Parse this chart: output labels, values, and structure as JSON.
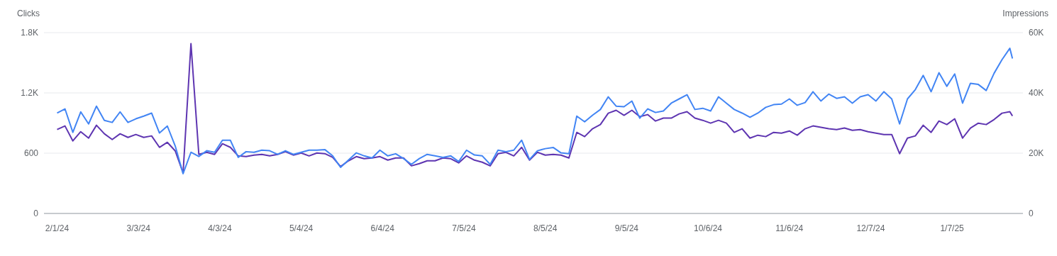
{
  "chart_data": {
    "type": "line",
    "ylabel": "Clicks",
    "y2label": "Impressions",
    "grid": "y",
    "legend": false,
    "marker": "none",
    "line_style": "solid",
    "x": [
      "2024-02-01",
      "2024-02-04",
      "2024-02-07",
      "2024-02-10",
      "2024-02-13",
      "2024-02-16",
      "2024-02-19",
      "2024-02-22",
      "2024-02-25",
      "2024-02-28",
      "2024-03-02",
      "2024-03-05",
      "2024-03-08",
      "2024-03-11",
      "2024-03-14",
      "2024-03-17",
      "2024-03-20",
      "2024-03-23",
      "2024-03-26",
      "2024-03-29",
      "2024-04-01",
      "2024-04-04",
      "2024-04-07",
      "2024-04-10",
      "2024-04-13",
      "2024-04-16",
      "2024-04-19",
      "2024-04-22",
      "2024-04-25",
      "2024-04-28",
      "2024-05-01",
      "2024-05-04",
      "2024-05-07",
      "2024-05-10",
      "2024-05-13",
      "2024-05-16",
      "2024-05-19",
      "2024-05-22",
      "2024-05-25",
      "2024-05-28",
      "2024-05-31",
      "2024-06-03",
      "2024-06-06",
      "2024-06-09",
      "2024-06-12",
      "2024-06-15",
      "2024-06-18",
      "2024-06-21",
      "2024-06-24",
      "2024-06-27",
      "2024-06-30",
      "2024-07-03",
      "2024-07-06",
      "2024-07-09",
      "2024-07-12",
      "2024-07-15",
      "2024-07-18",
      "2024-07-21",
      "2024-07-24",
      "2024-07-27",
      "2024-07-30",
      "2024-08-02",
      "2024-08-05",
      "2024-08-08",
      "2024-08-11",
      "2024-08-14",
      "2024-08-17",
      "2024-08-20",
      "2024-08-23",
      "2024-08-26",
      "2024-08-29",
      "2024-09-01",
      "2024-09-04",
      "2024-09-07",
      "2024-09-10",
      "2024-09-13",
      "2024-09-16",
      "2024-09-19",
      "2024-09-22",
      "2024-09-25",
      "2024-09-28",
      "2024-10-01",
      "2024-10-04",
      "2024-10-07",
      "2024-10-10",
      "2024-10-13",
      "2024-10-16",
      "2024-10-19",
      "2024-10-22",
      "2024-10-25",
      "2024-10-28",
      "2024-10-31",
      "2024-11-03",
      "2024-11-06",
      "2024-11-09",
      "2024-11-12",
      "2024-11-15",
      "2024-11-18",
      "2024-11-21",
      "2024-11-24",
      "2024-11-27",
      "2024-11-30",
      "2024-12-03",
      "2024-12-06",
      "2024-12-09",
      "2024-12-12",
      "2024-12-15",
      "2024-12-18",
      "2024-12-21",
      "2024-12-24",
      "2024-12-27",
      "2024-12-30",
      "2025-01-02",
      "2025-01-05",
      "2025-01-08",
      "2025-01-11",
      "2025-01-14",
      "2025-01-17",
      "2025-01-20",
      "2025-01-23",
      "2025-01-26",
      "2025-01-29",
      "2025-01-30"
    ],
    "xlim": [
      "2024-01-27",
      "2025-02-03"
    ],
    "xticks": [
      {
        "value": "2024-02-01",
        "label": "2/1/24"
      },
      {
        "value": "2024-03-03",
        "label": "3/3/24"
      },
      {
        "value": "2024-04-03",
        "label": "4/3/24"
      },
      {
        "value": "2024-05-04",
        "label": "5/4/24"
      },
      {
        "value": "2024-06-04",
        "label": "6/4/24"
      },
      {
        "value": "2024-07-05",
        "label": "7/5/24"
      },
      {
        "value": "2024-08-05",
        "label": "8/5/24"
      },
      {
        "value": "2024-09-05",
        "label": "9/5/24"
      },
      {
        "value": "2024-10-06",
        "label": "10/6/24"
      },
      {
        "value": "2024-11-06",
        "label": "11/6/24"
      },
      {
        "value": "2024-12-07",
        "label": "12/7/24"
      },
      {
        "value": "2025-01-07",
        "label": "1/7/25"
      }
    ],
    "ylim": [
      0,
      1800
    ],
    "yticks": [
      0,
      600,
      {
        "value": 1200,
        "label": "1.2K"
      },
      {
        "value": 1800,
        "label": "1.8K"
      }
    ],
    "y2lim": [
      0,
      60000
    ],
    "y2ticks": [
      0,
      {
        "value": 20000,
        "label": "20K"
      },
      {
        "value": 40000,
        "label": "40K"
      },
      {
        "value": 60000,
        "label": "60K"
      }
    ],
    "series": [
      {
        "color": "#5e35b1",
        "values": [
          835,
          871,
          722,
          814,
          750,
          878,
          793,
          736,
          793,
          757,
          786,
          757,
          772,
          658,
          708,
          623,
          404,
          1690,
          588,
          609,
          588,
          694,
          658,
          573,
          566,
          581,
          588,
          573,
          588,
          616,
          581,
          602,
          573,
          602,
          595,
          559,
          467,
          524,
          566,
          545,
          552,
          566,
          531,
          552,
          552,
          474,
          496,
          524,
          524,
          552,
          545,
          503,
          573,
          531,
          510,
          474,
          595,
          609,
          573,
          658,
          531,
          609,
          581,
          588,
          581,
          552,
          807,
          765,
          843,
          885,
          998,
          1027,
          977,
          1027,
          963,
          984,
          920,
          949,
          949,
          991,
          1013,
          949,
          927,
          899,
          927,
          899,
          807,
          843,
          750,
          779,
          765,
          807,
          800,
          821,
          779,
          843,
          871,
          857,
          843,
          835,
          850,
          828,
          835,
          814,
          800,
          786,
          786,
          595,
          750,
          772,
          878,
          807,
          920,
          885,
          942,
          750,
          850,
          899,
          885,
          935,
          998,
          1013,
          970
        ]
      },
      {
        "color": "#4285f4",
        "axis": "y2",
        "values": [
          33300,
          34700,
          26900,
          33700,
          29700,
          35600,
          30900,
          30200,
          33700,
          30200,
          31400,
          32300,
          33300,
          26700,
          29000,
          22400,
          13200,
          20300,
          18900,
          20800,
          20300,
          24300,
          24300,
          18600,
          20500,
          20300,
          21000,
          20800,
          19600,
          20800,
          19600,
          20300,
          21000,
          21000,
          21200,
          19100,
          15300,
          17700,
          20100,
          19100,
          18400,
          21000,
          19100,
          19800,
          18200,
          16300,
          18200,
          19600,
          19100,
          18600,
          19100,
          17200,
          21000,
          19400,
          19100,
          16300,
          21000,
          20500,
          21000,
          24300,
          17900,
          20800,
          21500,
          21900,
          20100,
          19800,
          32300,
          30400,
          32600,
          34500,
          38700,
          35600,
          35400,
          37300,
          31600,
          34700,
          33500,
          34000,
          36600,
          38000,
          39400,
          34500,
          34900,
          34000,
          38700,
          36600,
          34500,
          33300,
          31900,
          33300,
          35200,
          36100,
          36300,
          38000,
          35900,
          36800,
          40400,
          37300,
          39600,
          38200,
          38700,
          36600,
          38700,
          39400,
          37300,
          40400,
          38000,
          29700,
          38000,
          41100,
          45800,
          40400,
          46700,
          42200,
          46300,
          36600,
          43200,
          42800,
          40800,
          46500,
          51000,
          54800,
          51400
        ]
      }
    ]
  }
}
